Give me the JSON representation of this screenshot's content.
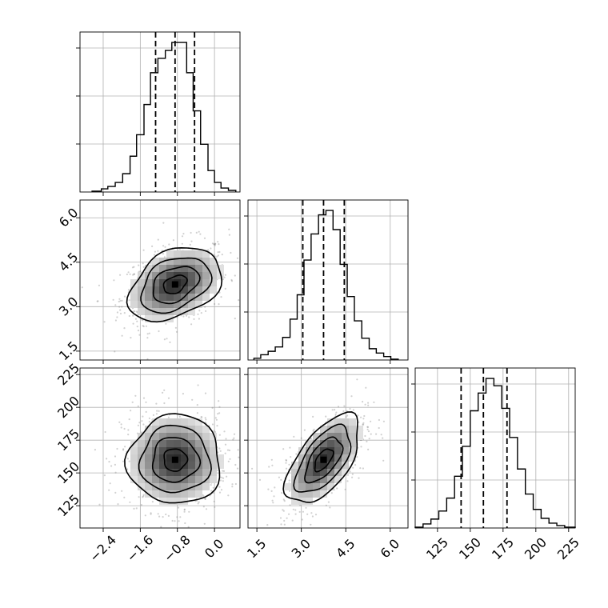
{
  "chart_data": {
    "type": "corner",
    "title": "",
    "params": [
      {
        "name": "",
        "range": [
          -2.9,
          0.55
        ],
        "ticks": [
          -2.4,
          -1.6,
          -0.8,
          0.0
        ],
        "tick_labels": [
          "−2.4",
          "−1.6",
          "−0.8",
          "0.0"
        ],
        "quantiles": [
          -1.27,
          -0.85,
          -0.43
        ]
      },
      {
        "name": "",
        "range": [
          1.2,
          6.6
        ],
        "ticks": [
          1.5,
          3.0,
          4.5,
          6.0
        ],
        "tick_labels": [
          "1.5",
          "3.0",
          "4.5",
          "6.0"
        ],
        "quantiles": [
          3.05,
          3.75,
          4.45
        ]
      },
      {
        "name": "",
        "range": [
          108,
          230
        ],
        "ticks": [
          125,
          150,
          175,
          200,
          225
        ],
        "tick_labels": [
          "125",
          "150",
          "175",
          "200",
          "225"
        ],
        "quantiles": [
          143,
          160,
          178
        ]
      }
    ],
    "histograms": [
      {
        "param": 0,
        "bin_edges": [
          -2.64,
          -2.44,
          -2.3,
          -2.14,
          -1.98,
          -1.82,
          -1.68,
          -1.52,
          -1.38,
          -1.22,
          -1.06,
          -0.92,
          -0.76,
          -0.6,
          -0.46,
          -0.3,
          -0.14,
          0.0,
          0.14,
          0.3,
          0.46
        ],
        "counts": [
          1,
          4,
          7,
          12,
          23,
          45,
          72,
          110,
          150,
          168,
          178,
          188,
          188,
          150,
          102,
          60,
          27,
          12,
          5,
          2
        ]
      },
      {
        "param": 1,
        "bin_edges": [
          1.4,
          1.63,
          1.88,
          2.12,
          2.37,
          2.62,
          2.86,
          3.09,
          3.33,
          3.58,
          3.83,
          4.07,
          4.31,
          4.55,
          4.79,
          5.04,
          5.29,
          5.53,
          5.78,
          6.02,
          6.27
        ],
        "counts": [
          2,
          6,
          10,
          15,
          26,
          47,
          75,
          115,
          145,
          167,
          172,
          150,
          110,
          73,
          45,
          25,
          13,
          8,
          4,
          1
        ]
      },
      {
        "param": 2,
        "bin_edges": [
          108,
          114,
          120,
          126,
          132,
          138,
          144,
          150,
          156,
          162,
          168,
          174,
          180,
          186,
          192,
          198,
          204,
          210,
          216,
          222,
          230
        ],
        "counts": [
          1,
          5,
          11,
          21,
          37,
          64,
          101,
          145,
          167,
          185,
          176,
          148,
          112,
          73,
          42,
          23,
          12,
          6,
          3,
          1
        ]
      }
    ],
    "scatter_panels": [
      {
        "x_param": 0,
        "y_param": 1,
        "center": [
          -0.85,
          3.75
        ],
        "sd": [
          0.5,
          0.62
        ],
        "rho": 0.35
      },
      {
        "x_param": 0,
        "y_param": 2,
        "center": [
          -0.85,
          160
        ],
        "sd": [
          0.5,
          17
        ],
        "rho": 0.0
      },
      {
        "x_param": 1,
        "y_param": 2,
        "center": [
          3.75,
          160
        ],
        "sd": [
          0.62,
          17
        ],
        "rho": 0.6
      }
    ],
    "contour_levels_sigma": [
      0.5,
      1.0,
      1.5,
      2.0
    ],
    "grid": true,
    "legend": "none"
  }
}
